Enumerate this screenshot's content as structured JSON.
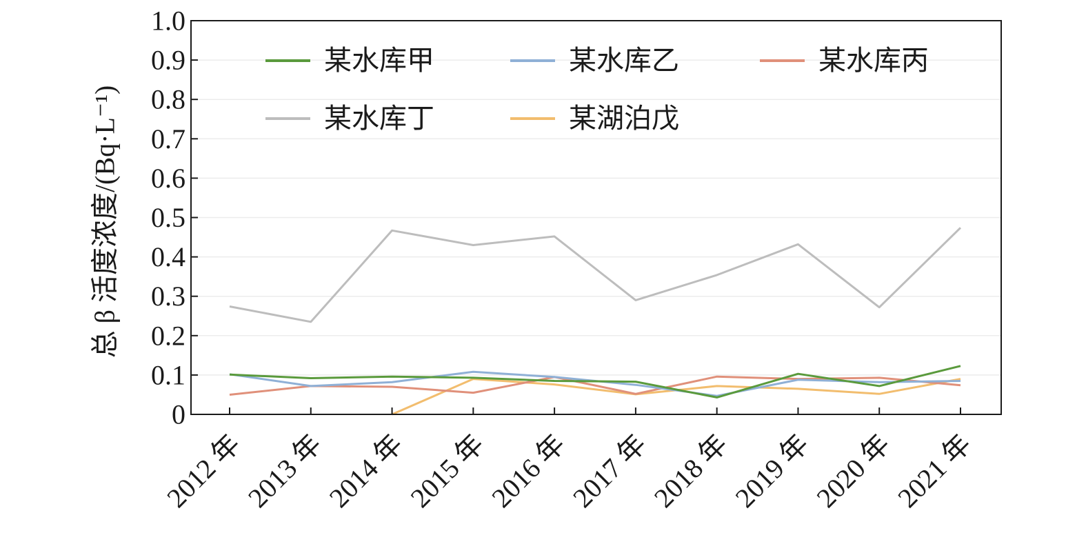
{
  "chart_data": {
    "type": "line",
    "categories": [
      "2012 年",
      "2013 年",
      "2014 年",
      "2015 年",
      "2016 年",
      "2017 年",
      "2018 年",
      "2019 年",
      "2020 年",
      "2021 年"
    ],
    "ylabel": "总 β 活度浓度/(Bq·L⁻¹)",
    "ylim": [
      0,
      1.0
    ],
    "yticks": [
      "0",
      "0.1",
      "0.2",
      "0.3",
      "0.4",
      "0.5",
      "0.6",
      "0.7",
      "0.8",
      "0.9",
      "1.0"
    ],
    "grid": true,
    "legend_position": "top",
    "series": [
      {
        "name": "某水库甲",
        "color": "#5a9a3c",
        "values": [
          0.101,
          0.092,
          0.096,
          0.093,
          0.085,
          0.083,
          0.043,
          0.103,
          0.072,
          0.123
        ]
      },
      {
        "name": "某水库乙",
        "color": "#8fb0d6",
        "values": [
          0.102,
          0.072,
          0.082,
          0.108,
          0.095,
          0.075,
          0.047,
          0.088,
          0.082,
          0.085
        ]
      },
      {
        "name": "某水库丙",
        "color": "#e0907a",
        "values": [
          0.05,
          0.072,
          0.07,
          0.055,
          0.095,
          0.052,
          0.096,
          0.09,
          0.093,
          0.074
        ]
      },
      {
        "name": "某水库丁",
        "color": "#bdbdbd",
        "values": [
          0.274,
          0.235,
          0.467,
          0.43,
          0.452,
          0.29,
          0.354,
          0.432,
          0.272,
          0.474
        ]
      },
      {
        "name": "某湖泊戊",
        "color": "#f2bd6e",
        "values": [
          null,
          null,
          0.0,
          0.09,
          0.076,
          0.051,
          0.072,
          0.065,
          0.052,
          0.09
        ]
      }
    ]
  }
}
